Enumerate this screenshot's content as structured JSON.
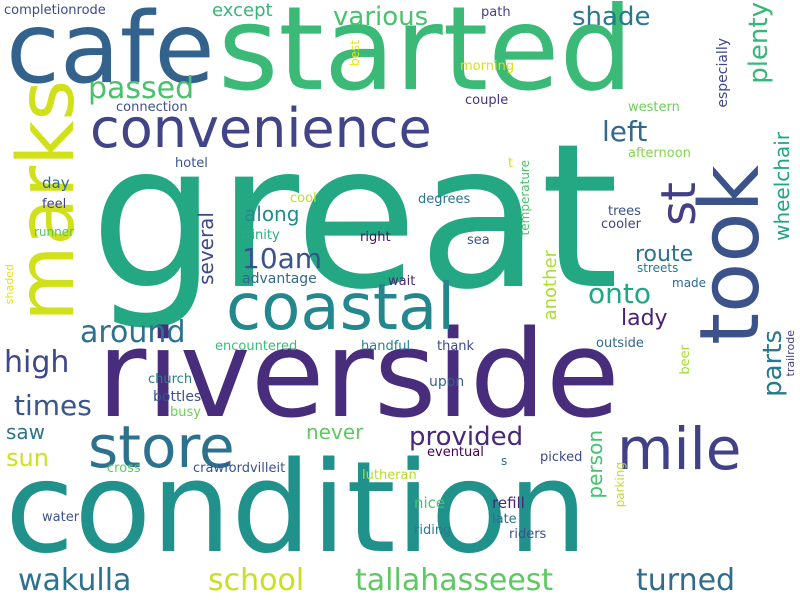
{
  "words": [
    {
      "text": "great",
      "color": "#24a884"
    },
    {
      "text": "condition",
      "color": "#21918c"
    },
    {
      "text": "riverside",
      "color": "#472d7b"
    },
    {
      "text": "started",
      "color": "#3aba76"
    },
    {
      "text": "cafe",
      "color": "#33638d"
    },
    {
      "text": "marks",
      "color": "#d0e11c"
    },
    {
      "text": "took",
      "color": "#3b528b"
    },
    {
      "text": "coastal",
      "color": "#23888e"
    },
    {
      "text": "convenience",
      "color": "#414487"
    },
    {
      "text": "store",
      "color": "#2c728e"
    },
    {
      "text": "mile",
      "color": "#424086"
    },
    {
      "text": "st",
      "color": "#433e85"
    },
    {
      "text": "wakulla",
      "color": "#2c728e"
    },
    {
      "text": "school",
      "color": "#c8e020"
    },
    {
      "text": "tallahasseest",
      "color": "#5ec962"
    },
    {
      "text": "turned",
      "color": "#2f6c8e"
    },
    {
      "text": "provided",
      "color": "#482878"
    },
    {
      "text": "around",
      "color": "#2c728e"
    },
    {
      "text": "10am",
      "color": "#3b528b"
    },
    {
      "text": "onto",
      "color": "#22a785"
    },
    {
      "text": "high",
      "color": "#3e4989"
    },
    {
      "text": "times",
      "color": "#3a548c"
    },
    {
      "text": "passed",
      "color": "#4ac16d"
    },
    {
      "text": "left",
      "color": "#31688e"
    },
    {
      "text": "shade",
      "color": "#2a788e"
    },
    {
      "text": "various",
      "color": "#4ac16d"
    },
    {
      "text": "except",
      "color": "#35b779"
    },
    {
      "text": "plenty",
      "color": "#35b779"
    },
    {
      "text": "route",
      "color": "#2c728e"
    },
    {
      "text": "lady",
      "color": "#482173"
    },
    {
      "text": "parts",
      "color": "#2a788e"
    },
    {
      "text": "sun",
      "color": "#d0e11c"
    },
    {
      "text": "saw",
      "color": "#2c728e"
    },
    {
      "text": "never",
      "color": "#5ec962"
    },
    {
      "text": "along",
      "color": "#238a8d"
    },
    {
      "text": "several",
      "color": "#3e4989"
    },
    {
      "text": "another",
      "color": "#addc30"
    },
    {
      "text": "person",
      "color": "#48c16e"
    },
    {
      "text": "wheelchair",
      "color": "#20a386"
    },
    {
      "text": "especially",
      "color": "#404688"
    },
    {
      "text": "advantage",
      "color": "#31688e"
    },
    {
      "text": "completionrode",
      "color": "#3e4989"
    },
    {
      "text": "path",
      "color": "#414487"
    },
    {
      "text": "best",
      "color": "#e5e419"
    },
    {
      "text": "morning",
      "color": "#d8e219"
    },
    {
      "text": "couple",
      "color": "#46327e"
    },
    {
      "text": "connection",
      "color": "#3b528b"
    },
    {
      "text": "western",
      "color": "#6ece58"
    },
    {
      "text": "afternoon",
      "color": "#86d549"
    },
    {
      "text": "hotel",
      "color": "#3b528b"
    },
    {
      "text": "t",
      "color": "#d2e21b"
    },
    {
      "text": "temperature",
      "color": "#4ac16d"
    },
    {
      "text": "day",
      "color": "#31688e"
    },
    {
      "text": "feel",
      "color": "#433e85"
    },
    {
      "text": "cool",
      "color": "#bddf26"
    },
    {
      "text": "degrees",
      "color": "#2c728e"
    },
    {
      "text": "trees",
      "color": "#3b528b"
    },
    {
      "text": "cooler",
      "color": "#414487"
    },
    {
      "text": "runner",
      "color": "#52c569"
    },
    {
      "text": "trinity",
      "color": "#28ae80"
    },
    {
      "text": "right",
      "color": "#471365"
    },
    {
      "text": "sea",
      "color": "#3b528b"
    },
    {
      "text": "streets",
      "color": "#2a788e"
    },
    {
      "text": "made",
      "color": "#31688e"
    },
    {
      "text": "wait",
      "color": "#482878"
    },
    {
      "text": "shaded",
      "color": "#e5e419"
    },
    {
      "text": "encountered",
      "color": "#3aba76"
    },
    {
      "text": "handful",
      "color": "#26828e"
    },
    {
      "text": "thank",
      "color": "#3e4989"
    },
    {
      "text": "outside",
      "color": "#31688e"
    },
    {
      "text": "trailrode",
      "color": "#433e85"
    },
    {
      "text": "beer",
      "color": "#a5db36"
    },
    {
      "text": "church",
      "color": "#277f8e"
    },
    {
      "text": "upon",
      "color": "#355f8d"
    },
    {
      "text": "bottles",
      "color": "#3b528b"
    },
    {
      "text": "busy",
      "color": "#6ece58"
    },
    {
      "text": "eventual",
      "color": "#440154"
    },
    {
      "text": "s",
      "color": "#2c728e"
    },
    {
      "text": "picked",
      "color": "#3e4989"
    },
    {
      "text": "cross",
      "color": "#5ec962"
    },
    {
      "text": "crawfordvilleit",
      "color": "#3b528b"
    },
    {
      "text": "lutheran",
      "color": "#b5de2b"
    },
    {
      "text": "parking",
      "color": "#bddf26"
    },
    {
      "text": "nice",
      "color": "#4ac16d"
    },
    {
      "text": "refill",
      "color": "#482475"
    },
    {
      "text": "water",
      "color": "#3b528b"
    },
    {
      "text": "late",
      "color": "#2c728e"
    },
    {
      "text": "riding",
      "color": "#2a788e"
    },
    {
      "text": "riders",
      "color": "#3b528b"
    }
  ]
}
